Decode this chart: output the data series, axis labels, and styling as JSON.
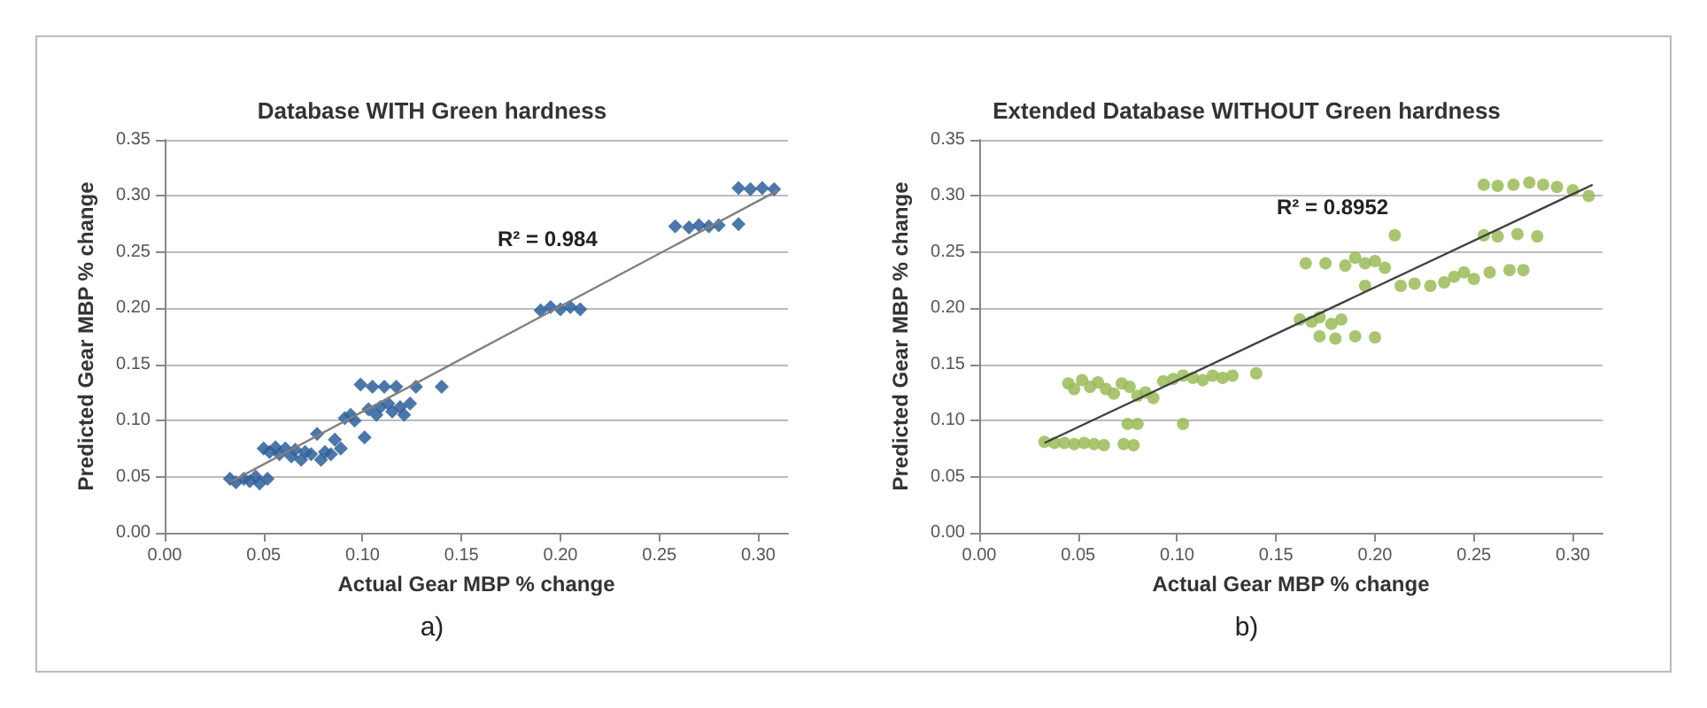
{
  "chart_data": [
    {
      "type": "scatter",
      "title": "Database WITH Green hardness",
      "xlabel": "Actual Gear MBP % change",
      "ylabel": "Predicted Gear MBP % change",
      "xlim": [
        0,
        0.315
      ],
      "ylim": [
        0,
        0.35
      ],
      "xticks": [
        {
          "value": 0,
          "label": "0.00"
        },
        {
          "value": 0.05,
          "label": "0.05"
        },
        {
          "value": 0.1,
          "label": "0.10"
        },
        {
          "value": 0.15,
          "label": "0.15"
        },
        {
          "value": 0.2,
          "label": "0.20"
        },
        {
          "value": 0.25,
          "label": "0.25"
        },
        {
          "value": 0.3,
          "label": "0.30"
        }
      ],
      "yticks": [
        {
          "value": 0,
          "label": "0.00"
        },
        {
          "value": 0.05,
          "label": "0.05"
        },
        {
          "value": 0.1,
          "label": "0.10"
        },
        {
          "value": 0.15,
          "label": "0.15"
        },
        {
          "value": 0.2,
          "label": "0.20"
        },
        {
          "value": 0.25,
          "label": "0.25"
        },
        {
          "value": 0.3,
          "label": "0.30"
        },
        {
          "value": 0.35,
          "label": "0.35"
        }
      ],
      "grid": "y",
      "marker": "diamond",
      "annotations": [
        "R² = 0.984",
        "a)"
      ],
      "series": [
        {
          "color": "#2e5f9a",
          "x": [
            0.033,
            0.036,
            0.04,
            0.043,
            0.046,
            0.048,
            0.052,
            0.05,
            0.053,
            0.056,
            0.058,
            0.061,
            0.064,
            0.066,
            0.069,
            0.071,
            0.074,
            0.077,
            0.079,
            0.081,
            0.084,
            0.086,
            0.089,
            0.091,
            0.094,
            0.096,
            0.099,
            0.101,
            0.103,
            0.105,
            0.107,
            0.109,
            0.111,
            0.113,
            0.115,
            0.117,
            0.119,
            0.121,
            0.124,
            0.127,
            0.14,
            0.19,
            0.195,
            0.2,
            0.205,
            0.21,
            0.258,
            0.265,
            0.27,
            0.275,
            0.28,
            0.29,
            0.29,
            0.296,
            0.302,
            0.308
          ],
          "values": [
            0.048,
            0.045,
            0.048,
            0.046,
            0.05,
            0.044,
            0.048,
            0.075,
            0.072,
            0.076,
            0.07,
            0.075,
            0.068,
            0.074,
            0.065,
            0.072,
            0.07,
            0.088,
            0.065,
            0.072,
            0.07,
            0.083,
            0.075,
            0.102,
            0.105,
            0.1,
            0.132,
            0.085,
            0.11,
            0.13,
            0.105,
            0.112,
            0.13,
            0.115,
            0.108,
            0.13,
            0.112,
            0.105,
            0.115,
            0.13,
            0.13,
            0.198,
            0.201,
            0.199,
            0.201,
            0.199,
            0.273,
            0.272,
            0.274,
            0.273,
            0.274,
            0.275,
            0.307,
            0.306,
            0.307,
            0.306
          ]
        },
        {
          "type": "line",
          "color": "#808080",
          "marker": "none",
          "x": [
            0.033,
            0.31
          ],
          "values": [
            0.045,
            0.305
          ]
        }
      ]
    },
    {
      "type": "scatter",
      "title": "Extended Database WITHOUT Green hardness",
      "xlabel": "Actual Gear MBP % change",
      "ylabel": "Predicted Gear MBP % change",
      "xlim": [
        0,
        0.315
      ],
      "ylim": [
        0,
        0.35
      ],
      "xticks": [
        {
          "value": 0,
          "label": "0.00"
        },
        {
          "value": 0.05,
          "label": "0.05"
        },
        {
          "value": 0.1,
          "label": "0.10"
        },
        {
          "value": 0.15,
          "label": "0.15"
        },
        {
          "value": 0.2,
          "label": "0.20"
        },
        {
          "value": 0.25,
          "label": "0.25"
        },
        {
          "value": 0.3,
          "label": "0.30"
        }
      ],
      "yticks": [
        {
          "value": 0,
          "label": "0.00"
        },
        {
          "value": 0.05,
          "label": "0.05"
        },
        {
          "value": 0.1,
          "label": "0.10"
        },
        {
          "value": 0.15,
          "label": "0.15"
        },
        {
          "value": 0.2,
          "label": "0.20"
        },
        {
          "value": 0.25,
          "label": "0.25"
        },
        {
          "value": 0.3,
          "label": "0.30"
        },
        {
          "value": 0.35,
          "label": "0.35"
        }
      ],
      "grid": "y",
      "marker": "circle",
      "annotations": [
        "R² = 0.8952",
        "b)"
      ],
      "series": [
        {
          "color": "#9bbb59",
          "x": [
            0.033,
            0.038,
            0.043,
            0.048,
            0.053,
            0.058,
            0.063,
            0.073,
            0.078,
            0.045,
            0.048,
            0.052,
            0.056,
            0.06,
            0.064,
            0.068,
            0.072,
            0.076,
            0.08,
            0.084,
            0.088,
            0.075,
            0.08,
            0.093,
            0.098,
            0.103,
            0.103,
            0.108,
            0.113,
            0.118,
            0.123,
            0.128,
            0.14,
            0.165,
            0.175,
            0.185,
            0.19,
            0.195,
            0.2,
            0.205,
            0.162,
            0.168,
            0.172,
            0.178,
            0.183,
            0.172,
            0.18,
            0.19,
            0.2,
            0.195,
            0.21,
            0.213,
            0.22,
            0.228,
            0.235,
            0.24,
            0.245,
            0.25,
            0.258,
            0.268,
            0.275,
            0.255,
            0.262,
            0.272,
            0.282,
            0.255,
            0.262,
            0.27,
            0.278,
            0.285,
            0.292,
            0.3,
            0.308
          ],
          "values": [
            0.081,
            0.08,
            0.08,
            0.079,
            0.08,
            0.079,
            0.078,
            0.079,
            0.078,
            0.133,
            0.128,
            0.136,
            0.13,
            0.134,
            0.128,
            0.124,
            0.133,
            0.13,
            0.122,
            0.125,
            0.12,
            0.097,
            0.097,
            0.135,
            0.137,
            0.14,
            0.097,
            0.138,
            0.136,
            0.14,
            0.138,
            0.14,
            0.142,
            0.24,
            0.24,
            0.238,
            0.245,
            0.24,
            0.242,
            0.236,
            0.19,
            0.188,
            0.192,
            0.186,
            0.19,
            0.175,
            0.173,
            0.175,
            0.174,
            0.22,
            0.265,
            0.22,
            0.222,
            0.22,
            0.223,
            0.228,
            0.232,
            0.226,
            0.232,
            0.234,
            0.234,
            0.265,
            0.264,
            0.266,
            0.264,
            0.31,
            0.309,
            0.31,
            0.312,
            0.31,
            0.308,
            0.305,
            0.3
          ]
        },
        {
          "type": "line",
          "color": "#404040",
          "marker": "none",
          "x": [
            0.033,
            0.31
          ],
          "values": [
            0.08,
            0.31
          ]
        }
      ]
    }
  ]
}
